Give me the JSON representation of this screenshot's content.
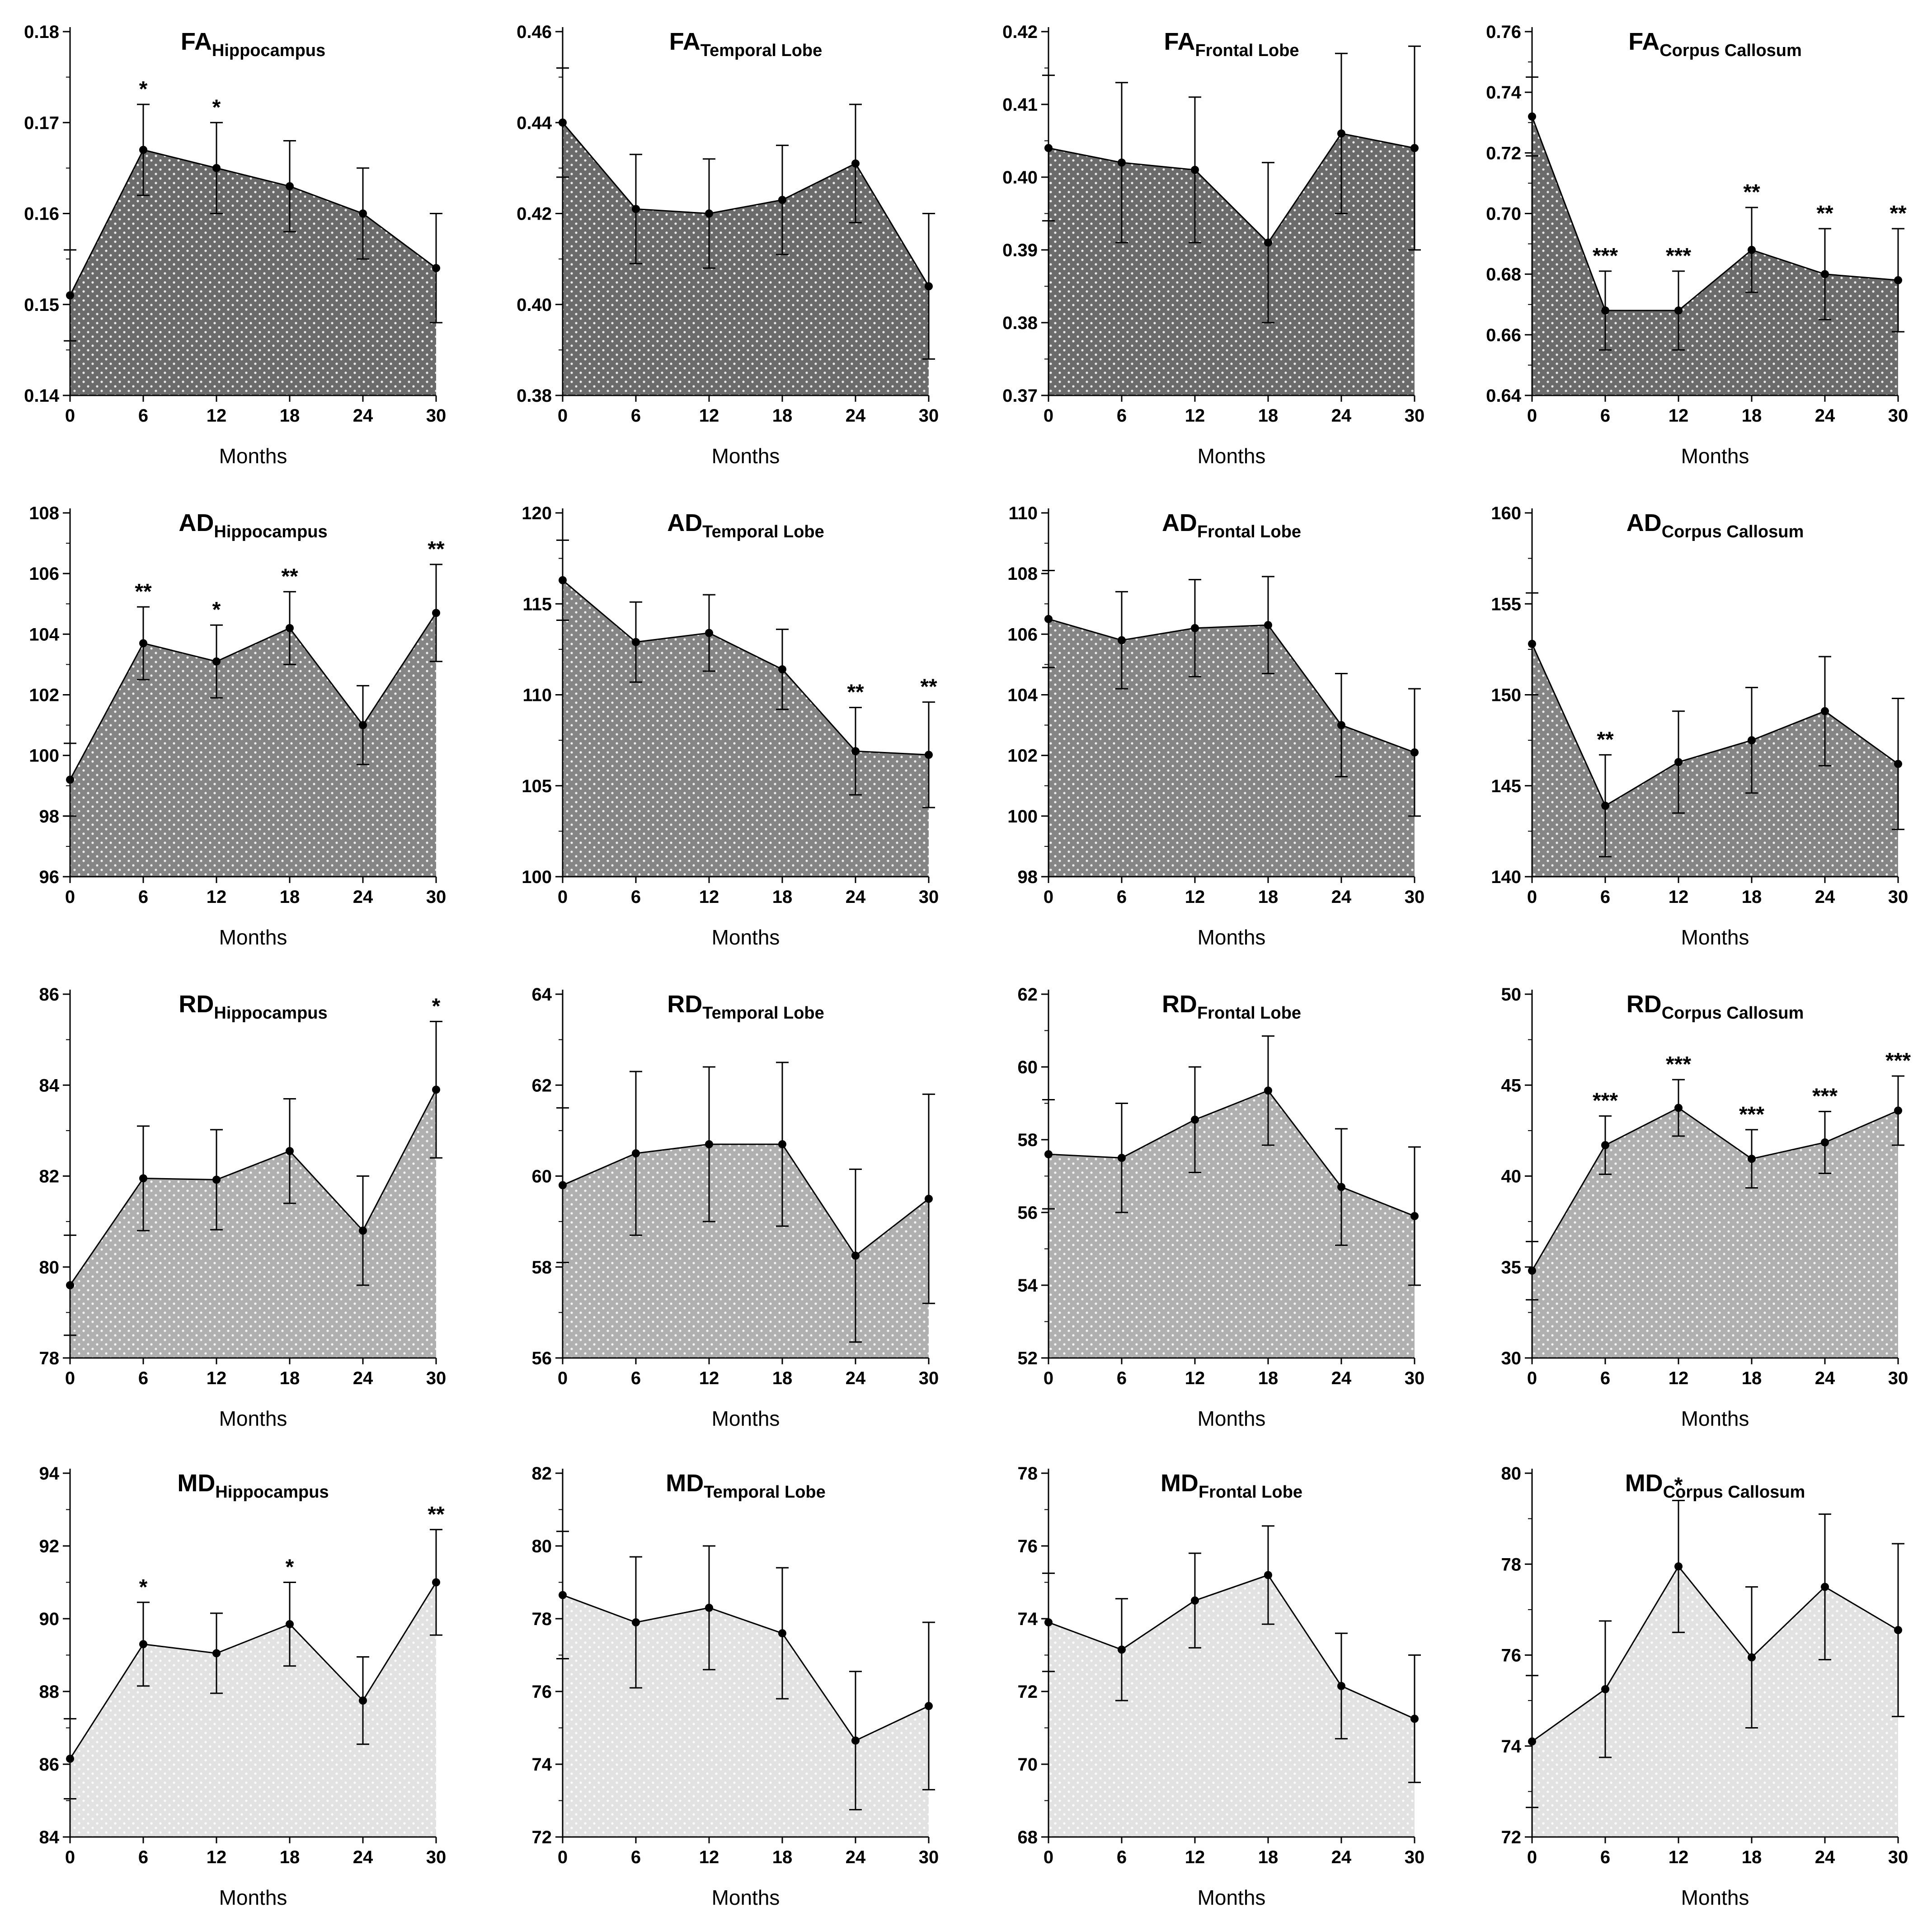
{
  "xlabel": "Months",
  "colors": {
    "FA": "#6b6b6b",
    "AD": "#858585",
    "RD": "#b0b0b0",
    "MD": "#e2e2e2",
    "dots": "#ffffff",
    "line": "#000000"
  },
  "chart_data": [
    {
      "type": "area",
      "metric": "FA",
      "region": "Hippocampus",
      "title_main": "FA",
      "title_sub": "Hippocampus",
      "x": [
        0,
        6,
        12,
        18,
        24,
        30
      ],
      "values": [
        0.151,
        0.167,
        0.165,
        0.163,
        0.16,
        0.154
      ],
      "errors": [
        0.005,
        0.005,
        0.005,
        0.005,
        0.005,
        0.006
      ],
      "significance": [
        "",
        "*",
        "*",
        "",
        "",
        ""
      ],
      "ylim": [
        0.14,
        0.18
      ],
      "yticks": [
        "0.14",
        "0.15",
        "0.16",
        "0.17",
        "0.18"
      ],
      "xticks": [
        "0",
        "6",
        "12",
        "18",
        "24",
        "30"
      ],
      "xlabel": "Months"
    },
    {
      "type": "area",
      "metric": "FA",
      "region": "Temporal Lobe",
      "title_main": "FA",
      "title_sub": "Temporal Lobe",
      "x": [
        0,
        6,
        12,
        18,
        24,
        30
      ],
      "values": [
        0.44,
        0.421,
        0.42,
        0.423,
        0.431,
        0.404
      ],
      "errors": [
        0.012,
        0.012,
        0.012,
        0.012,
        0.013,
        0.016
      ],
      "significance": [
        "",
        "",
        "",
        "",
        "",
        ""
      ],
      "ylim": [
        0.38,
        0.46
      ],
      "yticks": [
        "0.38",
        "0.40",
        "0.42",
        "0.44",
        "0.46"
      ],
      "xticks": [
        "0",
        "6",
        "12",
        "18",
        "24",
        "30"
      ],
      "xlabel": "Months"
    },
    {
      "type": "area",
      "metric": "FA",
      "region": "Frontal Lobe",
      "title_main": "FA",
      "title_sub": "Frontal Lobe",
      "x": [
        0,
        6,
        12,
        18,
        24,
        30
      ],
      "values": [
        0.404,
        0.402,
        0.401,
        0.391,
        0.406,
        0.404
      ],
      "errors": [
        0.01,
        0.011,
        0.01,
        0.011,
        0.011,
        0.014
      ],
      "significance": [
        "",
        "",
        "",
        "",
        "",
        ""
      ],
      "ylim": [
        0.37,
        0.42
      ],
      "yticks": [
        "0.37",
        "0.38",
        "0.39",
        "0.40",
        "0.41",
        "0.42"
      ],
      "xticks": [
        "0",
        "6",
        "12",
        "18",
        "24",
        "30"
      ],
      "xlabel": "Months"
    },
    {
      "type": "area",
      "metric": "FA",
      "region": "Corpus Callosum",
      "title_main": "FA",
      "title_sub": "Corpus Callosum",
      "x": [
        0,
        6,
        12,
        18,
        24,
        30
      ],
      "values": [
        0.732,
        0.668,
        0.668,
        0.688,
        0.68,
        0.678
      ],
      "errors": [
        0.013,
        0.013,
        0.013,
        0.014,
        0.015,
        0.017
      ],
      "significance": [
        "",
        "***",
        "***",
        "**",
        "**",
        "**"
      ],
      "ylim": [
        0.64,
        0.76
      ],
      "yticks": [
        "0.64",
        "0.66",
        "0.68",
        "0.70",
        "0.72",
        "0.74",
        "0.76"
      ],
      "xticks": [
        "0",
        "6",
        "12",
        "18",
        "24",
        "30"
      ],
      "xlabel": "Months"
    },
    {
      "type": "area",
      "metric": "AD",
      "region": "Hippocampus",
      "title_main": "AD",
      "title_sub": "Hippocampus",
      "x": [
        0,
        6,
        12,
        18,
        24,
        30
      ],
      "values": [
        99.2,
        103.7,
        103.1,
        104.2,
        101.0,
        104.7
      ],
      "errors": [
        1.2,
        1.2,
        1.2,
        1.2,
        1.3,
        1.6
      ],
      "significance": [
        "",
        "**",
        "*",
        "**",
        "",
        "**"
      ],
      "ylim": [
        96,
        108
      ],
      "yticks": [
        "96",
        "98",
        "100",
        "102",
        "104",
        "106",
        "108"
      ],
      "xticks": [
        "0",
        "6",
        "12",
        "18",
        "24",
        "30"
      ],
      "xlabel": "Months"
    },
    {
      "type": "area",
      "metric": "AD",
      "region": "Temporal Lobe",
      "title_main": "AD",
      "title_sub": "Temporal Lobe",
      "x": [
        0,
        6,
        12,
        18,
        24,
        30
      ],
      "values": [
        116.3,
        112.9,
        113.4,
        111.4,
        106.9,
        106.7
      ],
      "errors": [
        2.2,
        2.2,
        2.1,
        2.2,
        2.4,
        2.9
      ],
      "significance": [
        "",
        "",
        "",
        "",
        "**",
        "**"
      ],
      "ylim": [
        100,
        120
      ],
      "yticks": [
        "100",
        "105",
        "110",
        "115",
        "120"
      ],
      "xticks": [
        "0",
        "6",
        "12",
        "18",
        "24",
        "30"
      ],
      "xlabel": "Months"
    },
    {
      "type": "area",
      "metric": "AD",
      "region": "Frontal Lobe",
      "title_main": "AD",
      "title_sub": "Frontal Lobe",
      "x": [
        0,
        6,
        12,
        18,
        24,
        30
      ],
      "values": [
        106.5,
        105.8,
        106.2,
        106.3,
        103.0,
        102.1
      ],
      "errors": [
        1.6,
        1.6,
        1.6,
        1.6,
        1.7,
        2.1
      ],
      "significance": [
        "",
        "",
        "",
        "",
        "",
        ""
      ],
      "ylim": [
        98,
        110
      ],
      "yticks": [
        "98",
        "100",
        "102",
        "104",
        "106",
        "108",
        "110"
      ],
      "xticks": [
        "0",
        "6",
        "12",
        "18",
        "24",
        "30"
      ],
      "xlabel": "Months"
    },
    {
      "type": "area",
      "metric": "AD",
      "region": "Corpus Callosum",
      "title_main": "AD",
      "title_sub": "Corpus Callosum",
      "x": [
        0,
        6,
        12,
        18,
        24,
        30
      ],
      "values": [
        152.8,
        143.9,
        146.3,
        147.5,
        149.1,
        146.2
      ],
      "errors": [
        2.8,
        2.8,
        2.8,
        2.9,
        3.0,
        3.6
      ],
      "significance": [
        "",
        "**",
        "",
        "",
        "",
        ""
      ],
      "ylim": [
        140,
        160
      ],
      "yticks": [
        "140",
        "145",
        "150",
        "155",
        "160"
      ],
      "xticks": [
        "0",
        "6",
        "12",
        "18",
        "24",
        "30"
      ],
      "xlabel": "Months"
    },
    {
      "type": "area",
      "metric": "RD",
      "region": "Hippocampus",
      "title_main": "RD",
      "title_sub": "Hippocampus",
      "x": [
        0,
        6,
        12,
        18,
        24,
        30
      ],
      "values": [
        79.6,
        81.95,
        81.92,
        82.55,
        80.8,
        83.9
      ],
      "errors": [
        1.1,
        1.15,
        1.1,
        1.15,
        1.2,
        1.5
      ],
      "significance": [
        "",
        "",
        "",
        "",
        "",
        "*"
      ],
      "ylim": [
        78,
        86
      ],
      "yticks": [
        "78",
        "80",
        "82",
        "84",
        "86"
      ],
      "xticks": [
        "0",
        "6",
        "12",
        "18",
        "24",
        "30"
      ],
      "xlabel": "Months"
    },
    {
      "type": "area",
      "metric": "RD",
      "region": "Temporal Lobe",
      "title_main": "RD",
      "title_sub": "Temporal Lobe",
      "x": [
        0,
        6,
        12,
        18,
        24,
        30
      ],
      "values": [
        59.8,
        60.5,
        60.7,
        60.7,
        58.25,
        59.5
      ],
      "errors": [
        1.7,
        1.8,
        1.7,
        1.8,
        1.9,
        2.3
      ],
      "significance": [
        "",
        "",
        "",
        "",
        "",
        ""
      ],
      "ylim": [
        56,
        64
      ],
      "yticks": [
        "56",
        "58",
        "60",
        "62",
        "64"
      ],
      "xticks": [
        "0",
        "6",
        "12",
        "18",
        "24",
        "30"
      ],
      "xlabel": "Months"
    },
    {
      "type": "area",
      "metric": "RD",
      "region": "Frontal Lobe",
      "title_main": "RD",
      "title_sub": "Frontal Lobe",
      "x": [
        0,
        6,
        12,
        18,
        24,
        30
      ],
      "values": [
        57.6,
        57.5,
        58.55,
        59.35,
        56.7,
        55.9
      ],
      "errors": [
        1.5,
        1.5,
        1.45,
        1.5,
        1.6,
        1.9
      ],
      "significance": [
        "",
        "",
        "",
        "",
        "",
        ""
      ],
      "ylim": [
        52,
        62
      ],
      "yticks": [
        "52",
        "54",
        "56",
        "58",
        "60",
        "62"
      ],
      "xticks": [
        "0",
        "6",
        "12",
        "18",
        "24",
        "30"
      ],
      "xlabel": "Months"
    },
    {
      "type": "area",
      "metric": "RD",
      "region": "Corpus Callosum",
      "title_main": "RD",
      "title_sub": "Corpus Callosum",
      "x": [
        0,
        6,
        12,
        18,
        24,
        30
      ],
      "values": [
        34.8,
        41.7,
        43.75,
        40.95,
        41.85,
        43.6
      ],
      "errors": [
        1.6,
        1.6,
        1.55,
        1.6,
        1.7,
        1.9
      ],
      "significance": [
        "",
        "***",
        "***",
        "***",
        "***",
        "***"
      ],
      "ylim": [
        30,
        50
      ],
      "yticks": [
        "30",
        "35",
        "40",
        "45",
        "50"
      ],
      "xticks": [
        "0",
        "6",
        "12",
        "18",
        "24",
        "30"
      ],
      "xlabel": "Months"
    },
    {
      "type": "area",
      "metric": "MD",
      "region": "Hippocampus",
      "title_main": "MD",
      "title_sub": "Hippocampus",
      "x": [
        0,
        6,
        12,
        18,
        24,
        30
      ],
      "values": [
        86.15,
        89.3,
        89.05,
        89.85,
        87.75,
        91.0
      ],
      "errors": [
        1.1,
        1.15,
        1.1,
        1.15,
        1.2,
        1.45
      ],
      "significance": [
        "",
        "*",
        "",
        "*",
        "",
        "**"
      ],
      "ylim": [
        84,
        94
      ],
      "yticks": [
        "84",
        "86",
        "88",
        "90",
        "92",
        "94"
      ],
      "xticks": [
        "0",
        "6",
        "12",
        "18",
        "24",
        "30"
      ],
      "xlabel": "Months"
    },
    {
      "type": "area",
      "metric": "MD",
      "region": "Temporal Lobe",
      "title_main": "MD",
      "title_sub": "Temporal Lobe",
      "x": [
        0,
        6,
        12,
        18,
        24,
        30
      ],
      "values": [
        78.65,
        77.9,
        78.3,
        77.6,
        74.65,
        75.6
      ],
      "errors": [
        1.75,
        1.8,
        1.7,
        1.8,
        1.9,
        2.3
      ],
      "significance": [
        "",
        "",
        "",
        "",
        "",
        ""
      ],
      "ylim": [
        72,
        82
      ],
      "yticks": [
        "72",
        "74",
        "76",
        "78",
        "80",
        "82"
      ],
      "xticks": [
        "0",
        "6",
        "12",
        "18",
        "24",
        "30"
      ],
      "xlabel": "Months"
    },
    {
      "type": "area",
      "metric": "MD",
      "region": "Frontal Lobe",
      "title_main": "MD",
      "title_sub": "Frontal Lobe",
      "x": [
        0,
        6,
        12,
        18,
        24,
        30
      ],
      "values": [
        73.9,
        73.15,
        74.5,
        75.2,
        72.15,
        71.25
      ],
      "errors": [
        1.35,
        1.4,
        1.3,
        1.35,
        1.45,
        1.75
      ],
      "significance": [
        "",
        "",
        "",
        "",
        "",
        ""
      ],
      "ylim": [
        68,
        78
      ],
      "yticks": [
        "68",
        "70",
        "72",
        "74",
        "76",
        "78"
      ],
      "xticks": [
        "0",
        "6",
        "12",
        "18",
        "24",
        "30"
      ],
      "xlabel": "Months"
    },
    {
      "type": "area",
      "metric": "MD",
      "region": "Corpus Callosum",
      "title_main": "MD",
      "title_sub": "Corpus Callosum",
      "x": [
        0,
        6,
        12,
        18,
        24,
        30
      ],
      "values": [
        74.1,
        75.25,
        77.95,
        75.95,
        77.5,
        76.55
      ],
      "errors": [
        1.45,
        1.5,
        1.45,
        1.55,
        1.6,
        1.9
      ],
      "significance": [
        "",
        "",
        "*",
        "",
        "",
        ""
      ],
      "ylim": [
        72,
        80
      ],
      "yticks": [
        "72",
        "74",
        "76",
        "78",
        "80"
      ],
      "xticks": [
        "0",
        "6",
        "12",
        "18",
        "24",
        "30"
      ],
      "xlabel": "Months"
    }
  ]
}
